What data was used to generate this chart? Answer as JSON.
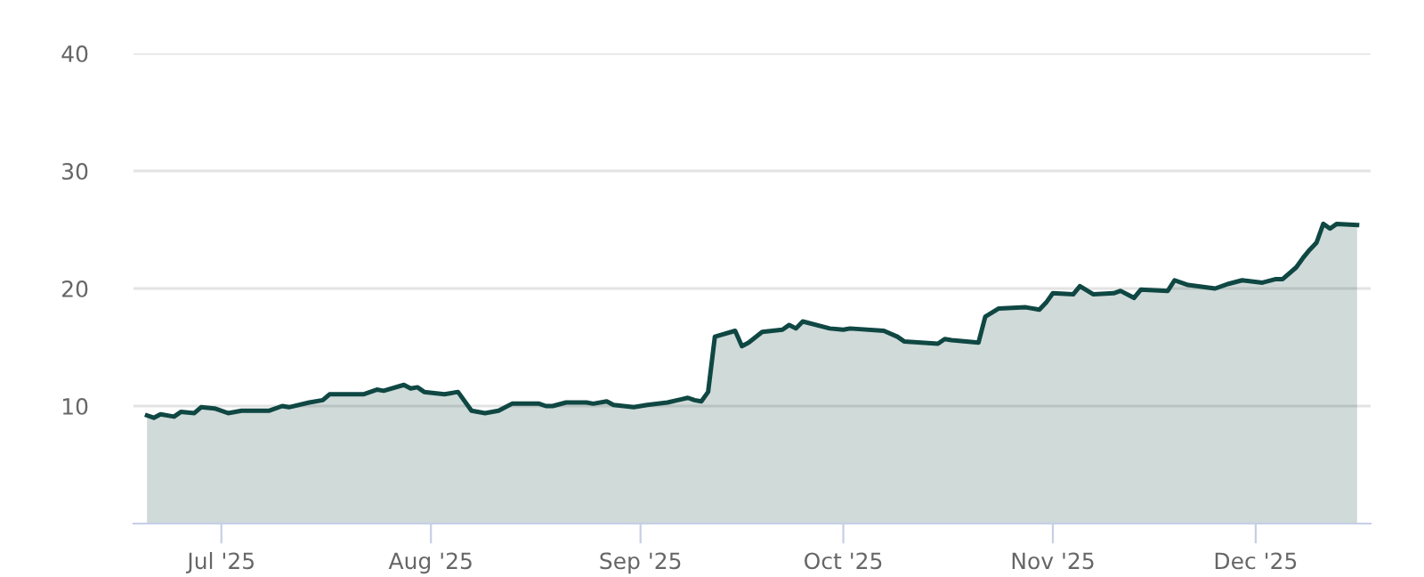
{
  "chart_data": {
    "type": "area",
    "series": [
      {
        "color": "#0f4743",
        "x": [
          "2025-06-20",
          "2025-06-21",
          "2025-06-22",
          "2025-06-24",
          "2025-06-25",
          "2025-06-27",
          "2025-06-28",
          "2025-06-30",
          "2025-07-02",
          "2025-07-04",
          "2025-07-08",
          "2025-07-10",
          "2025-07-11",
          "2025-07-14",
          "2025-07-16",
          "2025-07-17",
          "2025-07-22",
          "2025-07-24",
          "2025-07-25",
          "2025-07-28",
          "2025-07-29",
          "2025-07-30",
          "2025-07-31",
          "2025-08-03",
          "2025-08-05",
          "2025-08-07",
          "2025-08-09",
          "2025-08-11",
          "2025-08-13",
          "2025-08-17",
          "2025-08-18",
          "2025-08-19",
          "2025-08-21",
          "2025-08-24",
          "2025-08-25",
          "2025-08-27",
          "2025-08-28",
          "2025-08-31",
          "2025-09-02",
          "2025-09-05",
          "2025-09-08",
          "2025-09-09",
          "2025-09-10",
          "2025-09-11",
          "2025-09-12",
          "2025-09-15",
          "2025-09-16",
          "2025-09-17",
          "2025-09-19",
          "2025-09-22",
          "2025-09-23",
          "2025-09-24",
          "2025-09-25",
          "2025-09-29",
          "2025-10-01",
          "2025-10-02",
          "2025-10-07",
          "2025-10-09",
          "2025-10-10",
          "2025-10-15",
          "2025-10-16",
          "2025-10-17",
          "2025-10-21",
          "2025-10-22",
          "2025-10-24",
          "2025-10-28",
          "2025-10-30",
          "2025-10-31",
          "2025-11-01",
          "2025-11-04",
          "2025-11-05",
          "2025-11-07",
          "2025-11-10",
          "2025-11-11",
          "2025-11-13",
          "2025-11-14",
          "2025-11-18",
          "2025-11-19",
          "2025-11-21",
          "2025-11-25",
          "2025-11-27",
          "2025-11-29",
          "2025-12-02",
          "2025-12-04",
          "2025-12-05",
          "2025-12-07",
          "2025-12-08",
          "2025-12-09",
          "2025-12-10",
          "2025-12-11",
          "2025-12-12",
          "2025-12-13",
          "2025-12-16"
        ],
        "values": [
          9.2,
          9.0,
          9.3,
          9.1,
          9.5,
          9.4,
          9.9,
          9.8,
          9.4,
          9.6,
          9.6,
          10.0,
          9.9,
          10.3,
          10.5,
          11.0,
          11.0,
          11.4,
          11.3,
          11.8,
          11.5,
          11.6,
          11.2,
          11.0,
          11.2,
          9.6,
          9.4,
          9.6,
          10.2,
          10.2,
          10.0,
          10.0,
          10.3,
          10.3,
          10.2,
          10.4,
          10.1,
          9.9,
          10.1,
          10.3,
          10.7,
          10.5,
          10.4,
          11.2,
          15.9,
          16.4,
          15.1,
          15.4,
          16.3,
          16.5,
          16.9,
          16.6,
          17.2,
          16.6,
          16.5,
          16.6,
          16.4,
          15.9,
          15.5,
          15.3,
          15.7,
          15.6,
          15.4,
          17.6,
          18.3,
          18.4,
          18.2,
          18.8,
          19.6,
          19.5,
          20.2,
          19.5,
          19.6,
          19.8,
          19.2,
          19.9,
          19.8,
          20.7,
          20.3,
          20.0,
          20.4,
          20.7,
          20.5,
          20.8,
          20.8,
          21.8,
          22.6,
          23.3,
          23.9,
          25.5,
          25.1,
          25.5,
          25.4
        ]
      }
    ],
    "xlim": [
      "2025-06-18",
      "2025-12-18"
    ],
    "xticks": [
      {
        "value": "2025-07-01",
        "label": "Jul '25"
      },
      {
        "value": "2025-08-01",
        "label": "Aug '25"
      },
      {
        "value": "2025-09-01",
        "label": "Sep '25"
      },
      {
        "value": "2025-10-01",
        "label": "Oct '25"
      },
      {
        "value": "2025-11-01",
        "label": "Nov '25"
      },
      {
        "value": "2025-12-01",
        "label": "Dec '25"
      }
    ],
    "ylim": [
      0,
      40
    ],
    "yticks": [
      10,
      20,
      30,
      40
    ],
    "grid": "y",
    "legend": false
  }
}
